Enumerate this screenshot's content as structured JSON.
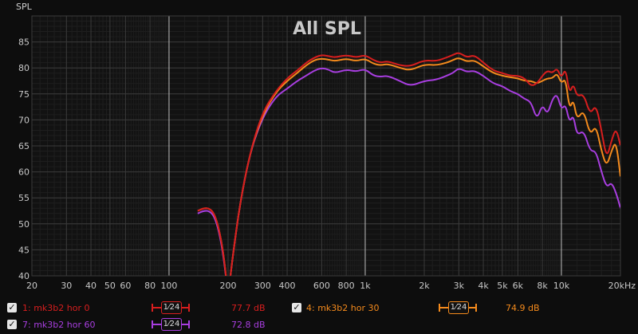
{
  "chart_data": {
    "type": "line",
    "title": "All SPL",
    "ylabel": "SPL",
    "xunit": "kHz",
    "xscale": "log",
    "xlim": [
      20,
      20000
    ],
    "ylim": [
      40,
      90
    ],
    "yticks": [
      40,
      45,
      50,
      55,
      60,
      65,
      70,
      75,
      80,
      85
    ],
    "xticks": [
      {
        "v": 20,
        "l": "20"
      },
      {
        "v": 30,
        "l": "30"
      },
      {
        "v": 40,
        "l": "40"
      },
      {
        "v": 50,
        "l": "50"
      },
      {
        "v": 60,
        "l": "60"
      },
      {
        "v": 80,
        "l": "80"
      },
      {
        "v": 100,
        "l": "100"
      },
      {
        "v": 200,
        "l": "200"
      },
      {
        "v": 300,
        "l": "300"
      },
      {
        "v": 400,
        "l": "400"
      },
      {
        "v": 600,
        "l": "600"
      },
      {
        "v": 800,
        "l": "800"
      },
      {
        "v": 1000,
        "l": "1k"
      },
      {
        "v": 2000,
        "l": "2k"
      },
      {
        "v": 3000,
        "l": "3k"
      },
      {
        "v": 4000,
        "l": "4k"
      },
      {
        "v": 5000,
        "l": "5k"
      },
      {
        "v": 6000,
        "l": "6k"
      },
      {
        "v": 8000,
        "l": "8k"
      },
      {
        "v": 10000,
        "l": "10k"
      },
      {
        "v": 20000,
        "l": "20kHz"
      }
    ],
    "grid": true,
    "series": [
      {
        "name": "1: mk3b2 hor 0",
        "color": "#d81e1e",
        "points": [
          [
            140,
            52.5
          ],
          [
            150,
            53
          ],
          [
            160,
            53
          ],
          [
            170,
            52
          ],
          [
            180,
            49
          ],
          [
            190,
            44
          ],
          [
            200,
            36
          ],
          [
            210,
            43
          ],
          [
            230,
            54
          ],
          [
            260,
            64
          ],
          [
            300,
            71.5
          ],
          [
            350,
            75.5
          ],
          [
            400,
            78
          ],
          [
            450,
            79.5
          ],
          [
            500,
            81
          ],
          [
            550,
            82
          ],
          [
            600,
            82.5
          ],
          [
            650,
            82.3
          ],
          [
            700,
            82
          ],
          [
            800,
            82.5
          ],
          [
            900,
            82
          ],
          [
            1000,
            82.5
          ],
          [
            1100,
            81.5
          ],
          [
            1200,
            81
          ],
          [
            1300,
            81.3
          ],
          [
            1500,
            80.5
          ],
          [
            1700,
            80.3
          ],
          [
            2000,
            81.5
          ],
          [
            2300,
            81.3
          ],
          [
            2600,
            82
          ],
          [
            2800,
            82.5
          ],
          [
            3000,
            83
          ],
          [
            3300,
            82
          ],
          [
            3600,
            82.5
          ],
          [
            4000,
            81
          ],
          [
            4500,
            79.5
          ],
          [
            5000,
            79
          ],
          [
            5500,
            78.5
          ],
          [
            6000,
            78.5
          ],
          [
            6500,
            78
          ],
          [
            7000,
            76.5
          ],
          [
            7500,
            77
          ],
          [
            8000,
            78.5
          ],
          [
            8500,
            79.5
          ],
          [
            9000,
            79
          ],
          [
            9500,
            80
          ],
          [
            10000,
            78
          ],
          [
            10500,
            80
          ],
          [
            11000,
            75
          ],
          [
            11500,
            77
          ],
          [
            12000,
            74.5
          ],
          [
            13000,
            75
          ],
          [
            14000,
            71
          ],
          [
            15000,
            73
          ],
          [
            16000,
            68
          ],
          [
            17000,
            62.5
          ],
          [
            18000,
            66
          ],
          [
            19000,
            68.5
          ],
          [
            20000,
            65
          ]
        ]
      },
      {
        "name": "4: mk3b2 hor 30",
        "color": "#f48a1c",
        "points": [
          [
            140,
            52.5
          ],
          [
            150,
            53
          ],
          [
            160,
            53
          ],
          [
            170,
            52
          ],
          [
            180,
            49
          ],
          [
            190,
            44
          ],
          [
            200,
            36
          ],
          [
            210,
            43
          ],
          [
            230,
            54
          ],
          [
            260,
            64
          ],
          [
            300,
            71
          ],
          [
            350,
            75.3
          ],
          [
            400,
            77.5
          ],
          [
            450,
            79
          ],
          [
            500,
            80.5
          ],
          [
            550,
            81.5
          ],
          [
            600,
            81.8
          ],
          [
            650,
            81.6
          ],
          [
            700,
            81.3
          ],
          [
            800,
            81.8
          ],
          [
            900,
            81.3
          ],
          [
            1000,
            81.8
          ],
          [
            1100,
            80.8
          ],
          [
            1200,
            80.5
          ],
          [
            1300,
            80.8
          ],
          [
            1500,
            80
          ],
          [
            1700,
            79.5
          ],
          [
            2000,
            80.7
          ],
          [
            2300,
            80.5
          ],
          [
            2600,
            81
          ],
          [
            2800,
            81.5
          ],
          [
            3000,
            82
          ],
          [
            3300,
            81.2
          ],
          [
            3600,
            81.5
          ],
          [
            4000,
            80.3
          ],
          [
            4500,
            79
          ],
          [
            5000,
            78.5
          ],
          [
            5500,
            78.2
          ],
          [
            6000,
            78
          ],
          [
            6500,
            77.5
          ],
          [
            7000,
            77.5
          ],
          [
            7500,
            77
          ],
          [
            8000,
            77.5
          ],
          [
            8500,
            78
          ],
          [
            9000,
            78
          ],
          [
            9500,
            79
          ],
          [
            10000,
            77
          ],
          [
            10500,
            78
          ],
          [
            11000,
            72
          ],
          [
            11500,
            74
          ],
          [
            12000,
            70
          ],
          [
            13000,
            72
          ],
          [
            14000,
            67
          ],
          [
            15000,
            69
          ],
          [
            16000,
            64
          ],
          [
            17000,
            61
          ],
          [
            18000,
            64
          ],
          [
            19000,
            66
          ],
          [
            20000,
            59
          ]
        ]
      },
      {
        "name": "7: mk3b2 hor 60",
        "color": "#a83ee0",
        "points": [
          [
            140,
            52
          ],
          [
            150,
            52.5
          ],
          [
            160,
            52.5
          ],
          [
            170,
            51.5
          ],
          [
            180,
            48.5
          ],
          [
            190,
            43.5
          ],
          [
            200,
            36
          ],
          [
            210,
            43
          ],
          [
            230,
            54
          ],
          [
            260,
            64
          ],
          [
            300,
            70.5
          ],
          [
            350,
            74.5
          ],
          [
            400,
            76
          ],
          [
            450,
            77.5
          ],
          [
            500,
            78.5
          ],
          [
            550,
            79.5
          ],
          [
            600,
            80
          ],
          [
            650,
            79.7
          ],
          [
            700,
            79
          ],
          [
            800,
            79.7
          ],
          [
            900,
            79.3
          ],
          [
            1000,
            79.8
          ],
          [
            1100,
            78.5
          ],
          [
            1200,
            78.3
          ],
          [
            1300,
            78.5
          ],
          [
            1500,
            77.5
          ],
          [
            1700,
            76.5
          ],
          [
            2000,
            77.5
          ],
          [
            2300,
            77.7
          ],
          [
            2600,
            78.5
          ],
          [
            2800,
            79
          ],
          [
            3000,
            80
          ],
          [
            3300,
            79.2
          ],
          [
            3600,
            79.5
          ],
          [
            4000,
            78.5
          ],
          [
            4500,
            77
          ],
          [
            5000,
            76.5
          ],
          [
            5500,
            75.5
          ],
          [
            6000,
            75
          ],
          [
            6500,
            74
          ],
          [
            7000,
            73.5
          ],
          [
            7500,
            70
          ],
          [
            8000,
            73
          ],
          [
            8500,
            71
          ],
          [
            9000,
            74
          ],
          [
            9500,
            75
          ],
          [
            10000,
            72
          ],
          [
            10500,
            73
          ],
          [
            11000,
            69.5
          ],
          [
            11500,
            71
          ],
          [
            12000,
            67
          ],
          [
            13000,
            68
          ],
          [
            14000,
            64
          ],
          [
            15000,
            64
          ],
          [
            16000,
            60
          ],
          [
            17000,
            57
          ],
          [
            18000,
            58
          ],
          [
            19000,
            56
          ],
          [
            20000,
            53
          ]
        ]
      }
    ]
  },
  "legend": {
    "items": [
      {
        "label": "1: mk3b2 hor 0",
        "smoothing": "1⁄24",
        "value": "77.7 dB",
        "color": "#d81e1e",
        "checked": "✓"
      },
      {
        "label": "4: mk3b2 hor 30",
        "smoothing": "1⁄24",
        "value": "74.9 dB",
        "color": "#f48a1c",
        "checked": "✓"
      },
      {
        "label": "7: mk3b2 hor 60",
        "smoothing": "1⁄24",
        "value": "72.8 dB",
        "color": "#a83ee0",
        "checked": "✓"
      }
    ]
  }
}
